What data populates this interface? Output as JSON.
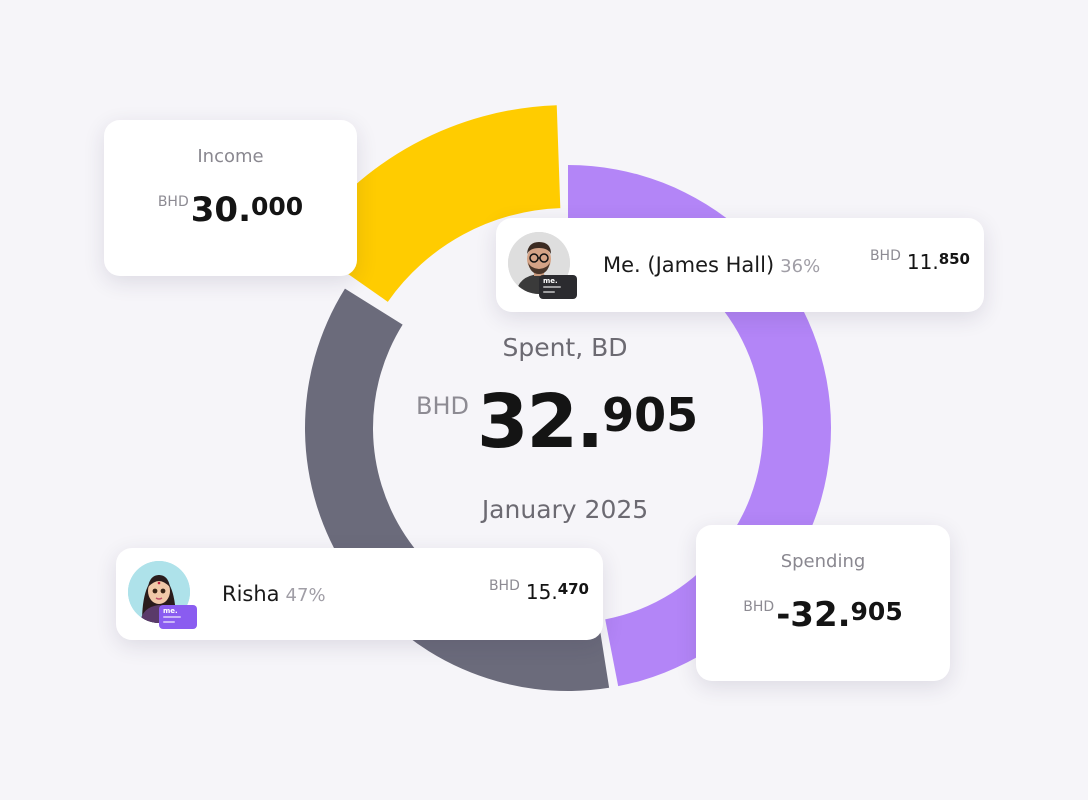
{
  "chart_data": {
    "type": "donut",
    "title": "Spent, BD",
    "total": {
      "currency": "BHD",
      "integer": "32.",
      "decimal": "905",
      "value": 32.905
    },
    "period": "January 2025",
    "segments": [
      {
        "name": "Risha",
        "percent": 47,
        "value": 15.47,
        "color": "#6b6b7b"
      },
      {
        "name": "Me. (James Hall)",
        "percent": 36,
        "value": 11.85,
        "color": "#b385f7"
      },
      {
        "name": "Income",
        "value": 30.0,
        "color": "#ffcc00"
      }
    ]
  },
  "income": {
    "label": "Income",
    "currency": "BHD",
    "integer": "30.",
    "decimal": "000"
  },
  "spending": {
    "label": "Spending",
    "currency": "BHD",
    "integer": "-32.",
    "decimal": "905"
  },
  "members": [
    {
      "name": "Me. (James Hall)",
      "percent": "36%",
      "currency": "BHD",
      "integer": "11.",
      "decimal": "850",
      "card_brand": "me."
    },
    {
      "name": "Risha",
      "percent": "47%",
      "currency": "BHD",
      "integer": "15.",
      "decimal": "470",
      "card_brand": "me."
    }
  ],
  "icons": {
    "avatar_me": "person-with-glasses-avatar",
    "avatar_risha": "woman-cartoon-avatar",
    "card": "bank-card-icon"
  }
}
